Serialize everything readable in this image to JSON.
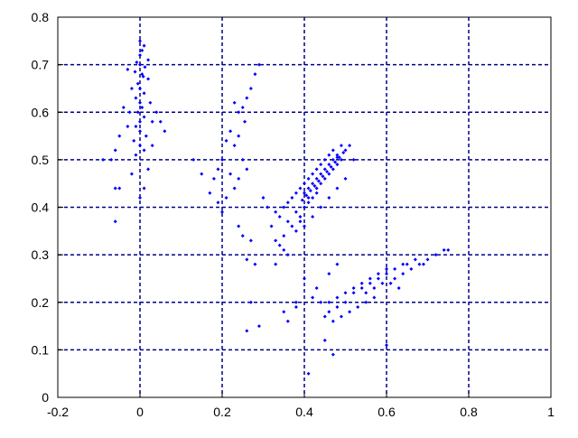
{
  "chart_data": {
    "type": "scatter",
    "title": "",
    "xlabel": "",
    "ylabel": "",
    "xlim": [
      -0.2,
      1.0
    ],
    "ylim": [
      0.0,
      0.8
    ],
    "x_ticks": [
      -0.2,
      0,
      0.2,
      0.4,
      0.6,
      0.8,
      1
    ],
    "x_tick_labels": [
      "-0.2",
      "0",
      "0.2",
      "0.4",
      "0.6",
      "0.8",
      "1"
    ],
    "y_ticks": [
      0,
      0.1,
      0.2,
      0.3,
      0.4,
      0.5,
      0.6,
      0.7,
      0.8
    ],
    "y_tick_labels": [
      "0",
      "0.1",
      "0.2",
      "0.3",
      "0.4",
      "0.5",
      "0.6",
      "0.7",
      "0.8"
    ],
    "grid": true,
    "legend": "none",
    "colors": {
      "points": "#0000ff",
      "grid": "#00008b",
      "axes": "#000000"
    },
    "series": [
      {
        "values_note_omitted": true,
        "points": [
          [
            0.0,
            0.72
          ],
          [
            0.01,
            0.74
          ],
          [
            0.0,
            0.7
          ],
          [
            0.005,
            0.68
          ],
          [
            -0.005,
            0.66
          ],
          [
            0.0,
            0.65
          ],
          [
            0.01,
            0.64
          ],
          [
            -0.01,
            0.63
          ],
          [
            0.0,
            0.62
          ],
          [
            0.005,
            0.61
          ],
          [
            -0.005,
            0.6
          ],
          [
            0.01,
            0.59
          ],
          [
            0.0,
            0.58
          ],
          [
            -0.01,
            0.57
          ],
          [
            0.0,
            0.56
          ],
          [
            0.015,
            0.55
          ],
          [
            -0.015,
            0.54
          ],
          [
            0.0,
            0.53
          ],
          [
            0.01,
            0.52
          ],
          [
            -0.01,
            0.51
          ],
          [
            0.02,
            0.67
          ],
          [
            -0.02,
            0.65
          ],
          [
            0.025,
            0.62
          ],
          [
            -0.025,
            0.6
          ],
          [
            0.03,
            0.58
          ],
          [
            -0.03,
            0.57
          ],
          [
            0.04,
            0.6
          ],
          [
            -0.04,
            0.61
          ],
          [
            0.05,
            0.58
          ],
          [
            -0.05,
            0.55
          ],
          [
            0.06,
            0.56
          ],
          [
            -0.06,
            0.52
          ],
          [
            0.02,
            0.48
          ],
          [
            -0.02,
            0.47
          ],
          [
            0.01,
            0.44
          ],
          [
            0.0,
            0.42
          ],
          [
            -0.07,
            0.5
          ],
          [
            -0.09,
            0.5
          ],
          [
            -0.05,
            0.44
          ],
          [
            -0.06,
            0.44
          ],
          [
            -0.06,
            0.37
          ],
          [
            0.03,
            0.53
          ],
          [
            -0.03,
            0.69
          ],
          [
            0.02,
            0.71
          ],
          [
            0.0,
            0.75
          ],
          [
            0.005,
            0.73
          ],
          [
            -0.008,
            0.705
          ],
          [
            0.012,
            0.695
          ],
          [
            -0.012,
            0.685
          ],
          [
            0.008,
            0.675
          ],
          [
            0.23,
            0.62
          ],
          [
            0.24,
            0.6
          ],
          [
            0.25,
            0.61
          ],
          [
            0.26,
            0.63
          ],
          [
            0.27,
            0.65
          ],
          [
            0.28,
            0.68
          ],
          [
            0.29,
            0.7
          ],
          [
            0.255,
            0.58
          ],
          [
            0.22,
            0.56
          ],
          [
            0.21,
            0.54
          ],
          [
            0.23,
            0.53
          ],
          [
            0.24,
            0.55
          ],
          [
            0.25,
            0.5
          ],
          [
            0.26,
            0.48
          ],
          [
            0.24,
            0.46
          ],
          [
            0.23,
            0.44
          ],
          [
            0.22,
            0.47
          ],
          [
            0.2,
            0.5
          ],
          [
            0.19,
            0.48
          ],
          [
            0.18,
            0.46
          ],
          [
            0.17,
            0.43
          ],
          [
            0.19,
            0.41
          ],
          [
            0.21,
            0.42
          ],
          [
            0.15,
            0.47
          ],
          [
            0.13,
            0.5
          ],
          [
            0.2,
            0.39
          ],
          [
            0.24,
            0.36
          ],
          [
            0.25,
            0.34
          ],
          [
            0.27,
            0.33
          ],
          [
            0.26,
            0.29
          ],
          [
            0.28,
            0.28
          ],
          [
            0.29,
            0.15
          ],
          [
            0.26,
            0.14
          ],
          [
            0.27,
            0.2
          ],
          [
            0.3,
            0.42
          ],
          [
            0.31,
            0.4
          ],
          [
            0.32,
            0.36
          ],
          [
            0.33,
            0.33
          ],
          [
            0.35,
            0.31
          ],
          [
            0.33,
            0.39
          ],
          [
            0.34,
            0.38
          ],
          [
            0.35,
            0.4
          ],
          [
            0.36,
            0.41
          ],
          [
            0.37,
            0.42
          ],
          [
            0.38,
            0.43
          ],
          [
            0.39,
            0.44
          ],
          [
            0.4,
            0.45
          ],
          [
            0.41,
            0.46
          ],
          [
            0.42,
            0.47
          ],
          [
            0.43,
            0.48
          ],
          [
            0.44,
            0.49
          ],
          [
            0.45,
            0.5
          ],
          [
            0.46,
            0.51
          ],
          [
            0.47,
            0.52
          ],
          [
            0.48,
            0.51
          ],
          [
            0.49,
            0.53
          ],
          [
            0.5,
            0.52
          ],
          [
            0.51,
            0.53
          ],
          [
            0.38,
            0.39
          ],
          [
            0.39,
            0.38
          ],
          [
            0.4,
            0.4
          ],
          [
            0.41,
            0.41
          ],
          [
            0.42,
            0.42
          ],
          [
            0.43,
            0.43
          ],
          [
            0.44,
            0.45
          ],
          [
            0.45,
            0.46
          ],
          [
            0.46,
            0.47
          ],
          [
            0.47,
            0.48
          ],
          [
            0.48,
            0.49
          ],
          [
            0.49,
            0.5
          ],
          [
            0.36,
            0.37
          ],
          [
            0.37,
            0.36
          ],
          [
            0.38,
            0.35
          ],
          [
            0.35,
            0.34
          ],
          [
            0.34,
            0.32
          ],
          [
            0.36,
            0.3
          ],
          [
            0.33,
            0.28
          ],
          [
            0.39,
            0.37
          ],
          [
            0.4,
            0.36
          ],
          [
            0.42,
            0.38
          ],
          [
            0.44,
            0.4
          ],
          [
            0.46,
            0.42
          ],
          [
            0.48,
            0.44
          ],
          [
            0.5,
            0.46
          ],
          [
            0.52,
            0.5
          ],
          [
            0.4,
            0.43
          ],
          [
            0.41,
            0.44
          ],
          [
            0.43,
            0.46
          ],
          [
            0.44,
            0.47
          ],
          [
            0.45,
            0.48
          ],
          [
            0.46,
            0.49
          ],
          [
            0.47,
            0.5
          ],
          [
            0.48,
            0.505
          ],
          [
            0.42,
            0.45
          ],
          [
            0.43,
            0.44
          ],
          [
            0.41,
            0.42
          ],
          [
            0.395,
            0.415
          ],
          [
            0.405,
            0.425
          ],
          [
            0.415,
            0.435
          ],
          [
            0.425,
            0.445
          ],
          [
            0.435,
            0.455
          ],
          [
            0.445,
            0.465
          ],
          [
            0.455,
            0.475
          ],
          [
            0.465,
            0.485
          ],
          [
            0.475,
            0.495
          ],
          [
            0.485,
            0.505
          ],
          [
            0.495,
            0.515
          ],
          [
            0.36,
            0.16
          ],
          [
            0.38,
            0.19
          ],
          [
            0.4,
            0.25
          ],
          [
            0.41,
            0.05
          ],
          [
            0.38,
            0.2
          ],
          [
            0.35,
            0.18
          ],
          [
            0.46,
            0.2
          ],
          [
            0.48,
            0.21
          ],
          [
            0.5,
            0.22
          ],
          [
            0.52,
            0.23
          ],
          [
            0.54,
            0.24
          ],
          [
            0.56,
            0.25
          ],
          [
            0.58,
            0.26
          ],
          [
            0.6,
            0.27
          ],
          [
            0.62,
            0.25
          ],
          [
            0.64,
            0.26
          ],
          [
            0.66,
            0.27
          ],
          [
            0.68,
            0.28
          ],
          [
            0.7,
            0.29
          ],
          [
            0.72,
            0.3
          ],
          [
            0.74,
            0.31
          ],
          [
            0.75,
            0.31
          ],
          [
            0.55,
            0.22
          ],
          [
            0.57,
            0.23
          ],
          [
            0.59,
            0.24
          ],
          [
            0.61,
            0.24
          ],
          [
            0.63,
            0.23
          ],
          [
            0.57,
            0.21
          ],
          [
            0.55,
            0.2
          ],
          [
            0.53,
            0.19
          ],
          [
            0.51,
            0.18
          ],
          [
            0.49,
            0.17
          ],
          [
            0.47,
            0.16
          ],
          [
            0.58,
            0.25
          ],
          [
            0.6,
            0.26
          ],
          [
            0.62,
            0.27
          ],
          [
            0.56,
            0.24
          ],
          [
            0.54,
            0.23
          ],
          [
            0.52,
            0.22
          ],
          [
            0.5,
            0.2
          ],
          [
            0.48,
            0.19
          ],
          [
            0.46,
            0.18
          ],
          [
            0.45,
            0.17
          ],
          [
            0.42,
            0.21
          ],
          [
            0.43,
            0.23
          ],
          [
            0.44,
            0.2
          ],
          [
            0.46,
            0.26
          ],
          [
            0.48,
            0.28
          ],
          [
            0.45,
            0.12
          ],
          [
            0.47,
            0.09
          ],
          [
            0.6,
            0.11
          ],
          [
            0.65,
            0.28
          ],
          [
            0.67,
            0.29
          ],
          [
            0.64,
            0.28
          ],
          [
            0.69,
            0.28
          ]
        ]
      }
    ]
  }
}
